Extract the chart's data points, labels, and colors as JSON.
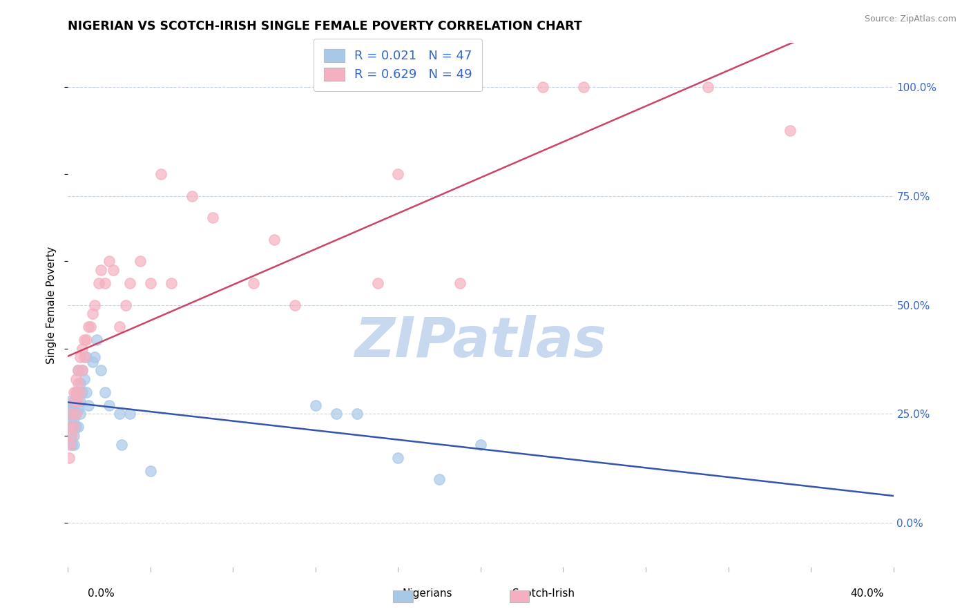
{
  "title": "NIGERIAN VS SCOTCH-IRISH SINGLE FEMALE POVERTY CORRELATION CHART",
  "source": "Source: ZipAtlas.com",
  "ylabel": "Single Female Poverty",
  "right_yticks": [
    0.0,
    0.25,
    0.5,
    0.75,
    1.0
  ],
  "right_yticklabels": [
    "0.0%",
    "25.0%",
    "50.0%",
    "75.0%",
    "100.0%"
  ],
  "nigerian_R": 0.021,
  "nigerian_N": 47,
  "scotch_irish_R": 0.629,
  "scotch_irish_N": 49,
  "blue_color": "#a8c8e8",
  "pink_color": "#f4b0c0",
  "blue_line_color": "#3355aa",
  "pink_line_color": "#cc4466",
  "blue_text_color": "#3366cc",
  "right_axis_label_color": "#3366cc",
  "watermark": "ZIPatlas",
  "watermark_color": "#c8d8ee",
  "nigerian_x": [
    0.0005,
    0.001,
    0.001,
    0.001,
    0.0015,
    0.002,
    0.002,
    0.002,
    0.002,
    0.003,
    0.003,
    0.003,
    0.003,
    0.003,
    0.004,
    0.004,
    0.004,
    0.004,
    0.005,
    0.005,
    0.005,
    0.005,
    0.006,
    0.006,
    0.006,
    0.007,
    0.007,
    0.008,
    0.009,
    0.009,
    0.01,
    0.012,
    0.013,
    0.014,
    0.016,
    0.018,
    0.02,
    0.025,
    0.026,
    0.03,
    0.04,
    0.12,
    0.14,
    0.16,
    0.18,
    0.2,
    0.13
  ],
  "nigerian_y": [
    0.25,
    0.22,
    0.26,
    0.28,
    0.2,
    0.18,
    0.22,
    0.24,
    0.27,
    0.18,
    0.2,
    0.24,
    0.26,
    0.28,
    0.22,
    0.25,
    0.28,
    0.3,
    0.22,
    0.26,
    0.3,
    0.35,
    0.25,
    0.28,
    0.32,
    0.3,
    0.35,
    0.33,
    0.3,
    0.38,
    0.27,
    0.37,
    0.38,
    0.42,
    0.35,
    0.3,
    0.27,
    0.25,
    0.18,
    0.25,
    0.12,
    0.27,
    0.25,
    0.15,
    0.1,
    0.18,
    0.25
  ],
  "scotch_irish_x": [
    0.0005,
    0.001,
    0.001,
    0.002,
    0.002,
    0.003,
    0.003,
    0.003,
    0.004,
    0.004,
    0.004,
    0.005,
    0.005,
    0.005,
    0.006,
    0.006,
    0.007,
    0.007,
    0.008,
    0.008,
    0.009,
    0.01,
    0.011,
    0.012,
    0.013,
    0.015,
    0.016,
    0.018,
    0.02,
    0.022,
    0.025,
    0.028,
    0.03,
    0.035,
    0.04,
    0.045,
    0.05,
    0.06,
    0.07,
    0.09,
    0.1,
    0.11,
    0.15,
    0.16,
    0.19,
    0.23,
    0.25,
    0.31,
    0.35
  ],
  "scotch_irish_y": [
    0.15,
    0.18,
    0.22,
    0.2,
    0.25,
    0.22,
    0.28,
    0.3,
    0.25,
    0.3,
    0.33,
    0.28,
    0.32,
    0.35,
    0.3,
    0.38,
    0.35,
    0.4,
    0.38,
    0.42,
    0.42,
    0.45,
    0.45,
    0.48,
    0.5,
    0.55,
    0.58,
    0.55,
    0.6,
    0.58,
    0.45,
    0.5,
    0.55,
    0.6,
    0.55,
    0.8,
    0.55,
    0.75,
    0.7,
    0.55,
    0.65,
    0.5,
    0.55,
    0.8,
    0.55,
    1.0,
    1.0,
    1.0,
    0.9
  ],
  "xlim": [
    0.0,
    0.4
  ],
  "ylim": [
    -0.1,
    1.1
  ],
  "grid_color": "#c8d4e4",
  "background_color": "#ffffff"
}
